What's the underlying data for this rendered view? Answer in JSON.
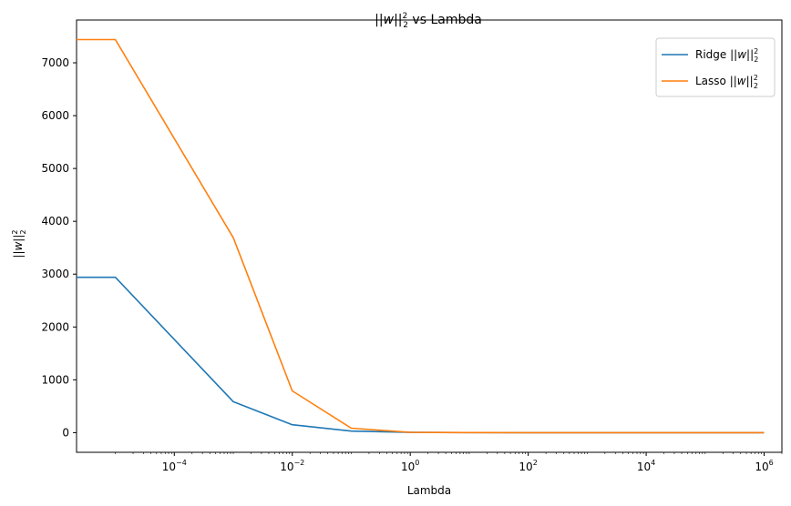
{
  "chart_data": {
    "type": "line",
    "title": "||w||²₂ vs Lambda",
    "xlabel": "Lambda",
    "ylabel": "||w||²₂",
    "xscale": "log",
    "xlim": [
      2.2e-06,
      2000000.0
    ],
    "ylim": [
      -372,
      7810
    ],
    "x_ticks": [
      0.0001,
      0.01,
      1,
      100,
      10000,
      1000000
    ],
    "x_tick_labels": [
      {
        "base": "10",
        "exp": "−4"
      },
      {
        "base": "10",
        "exp": "−2"
      },
      {
        "base": "10",
        "exp": "0"
      },
      {
        "base": "10",
        "exp": "2"
      },
      {
        "base": "10",
        "exp": "4"
      },
      {
        "base": "10",
        "exp": "6"
      }
    ],
    "y_ticks": [
      0,
      1000,
      2000,
      3000,
      4000,
      5000,
      6000,
      7000
    ],
    "y_tick_labels": [
      "0",
      "1000",
      "2000",
      "3000",
      "4000",
      "5000",
      "6000",
      "7000"
    ],
    "grid": false,
    "legend_position": "upper right",
    "x": [
      1e-06,
      1e-05,
      0.001,
      0.01,
      0.1,
      1,
      10,
      100,
      1000,
      10000,
      100000,
      1000000
    ],
    "series": [
      {
        "name": "Ridge ||w||²₂",
        "color": "#1f77b4",
        "values": [
          2940,
          2940,
          585,
          150,
          30,
          5,
          1,
          0.2,
          0.05,
          0.01,
          0,
          0
        ]
      },
      {
        "name": "Lasso ||w||²₂",
        "color": "#ff7f0e",
        "values": [
          7440,
          7440,
          3690,
          790,
          85,
          5,
          1,
          0.2,
          0.05,
          0.01,
          0,
          0
        ]
      }
    ]
  }
}
